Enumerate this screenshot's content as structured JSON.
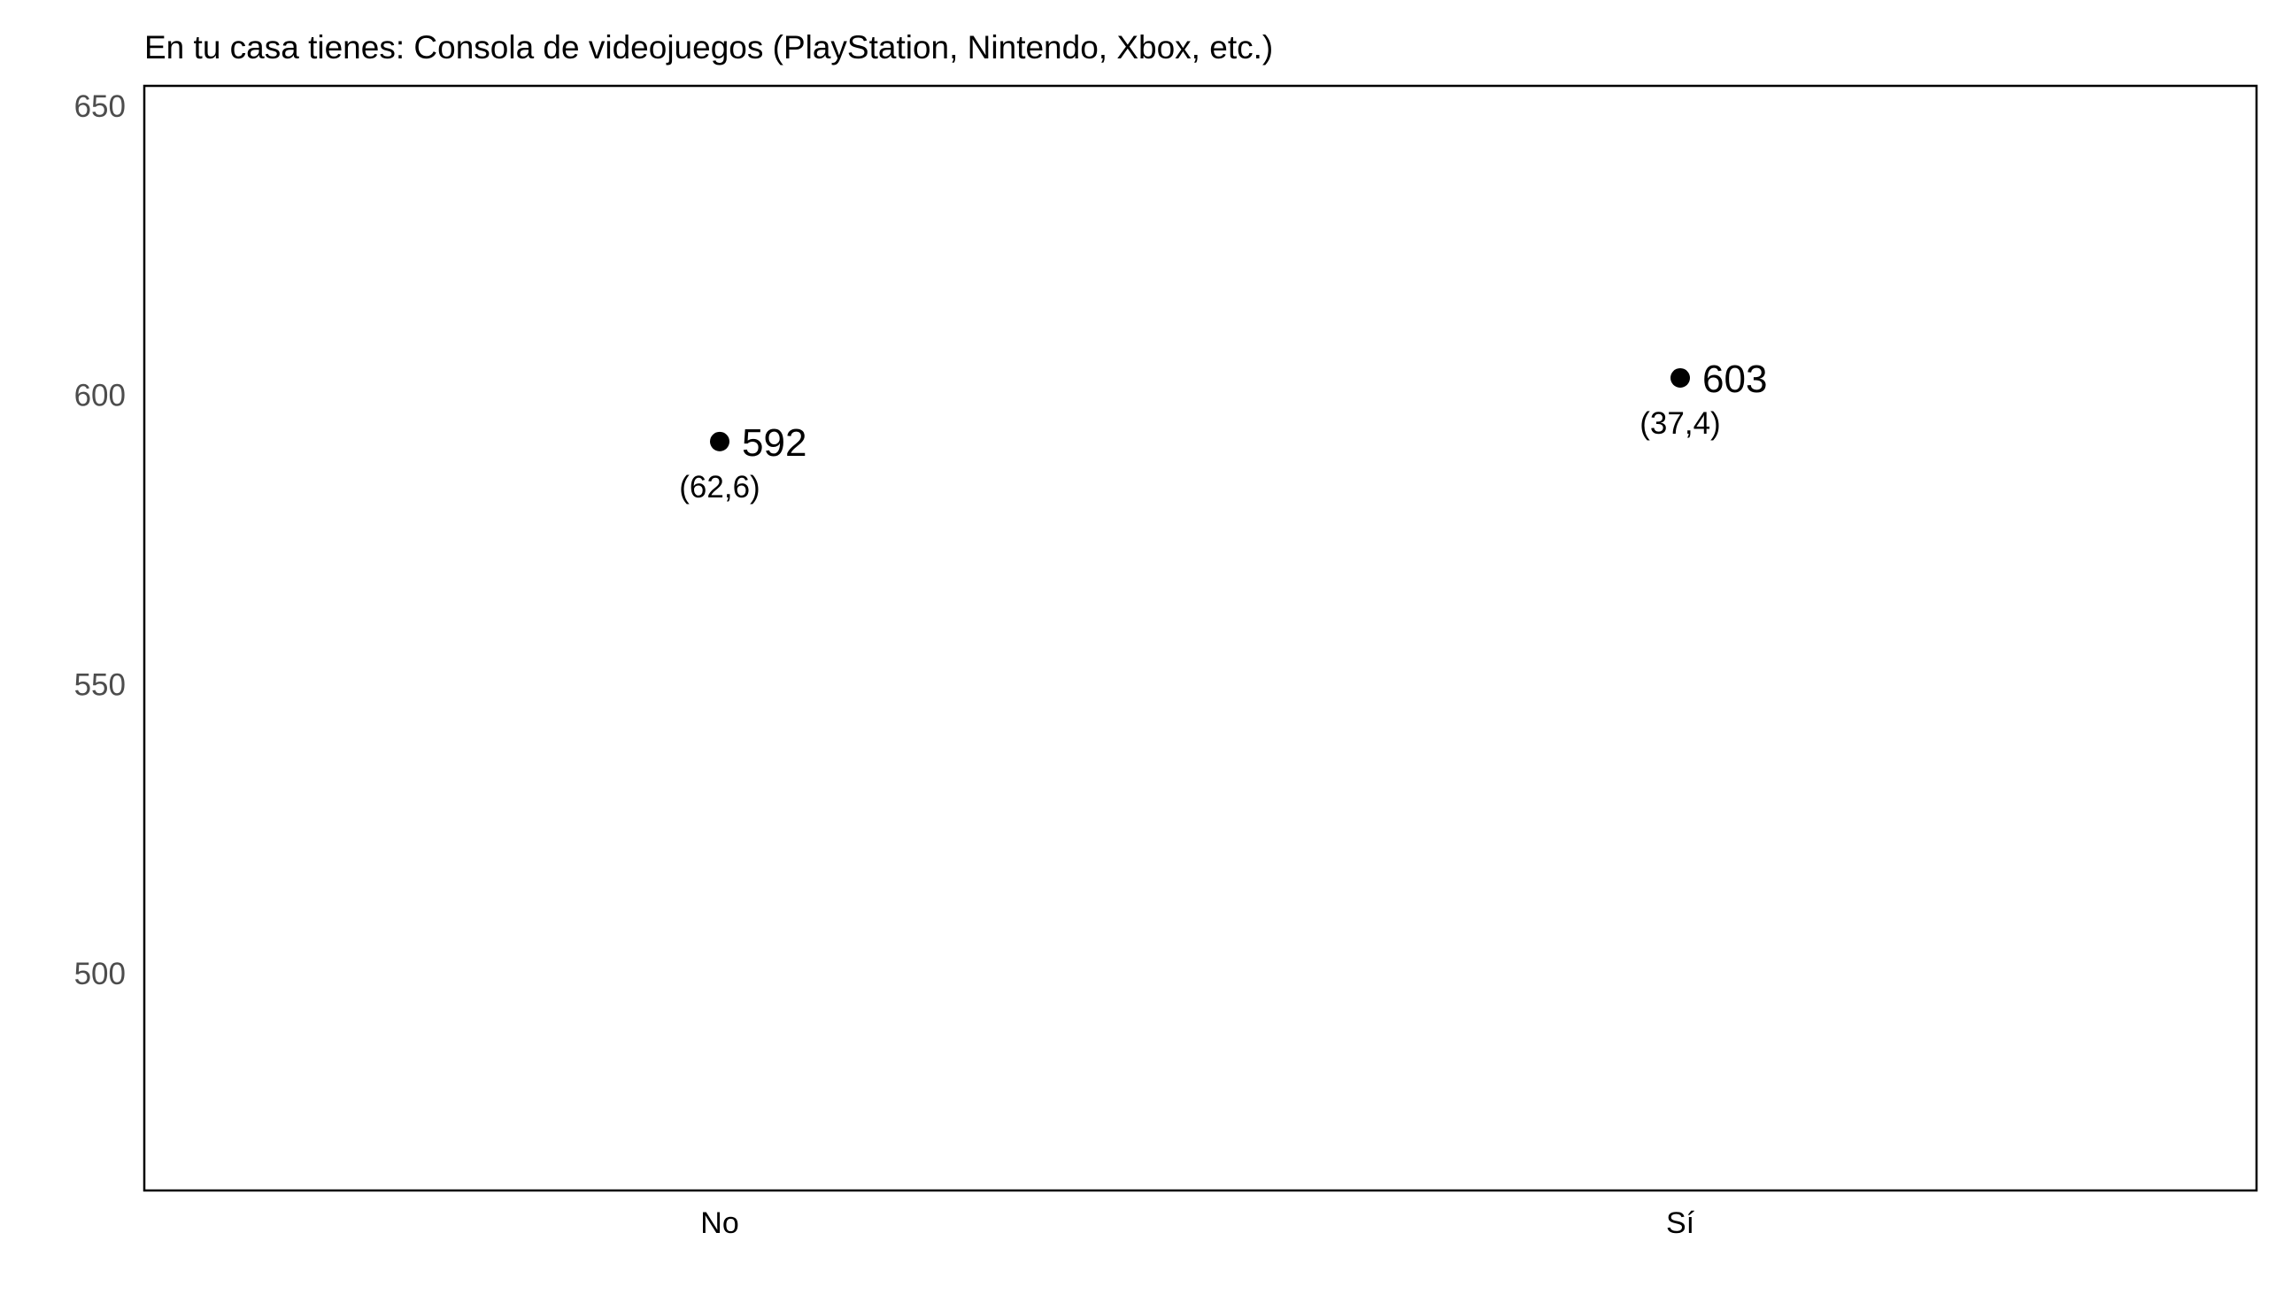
{
  "chart_data": {
    "type": "scatter",
    "title": "En tu casa tienes: Consola de videojuegos (PlayStation, Nintendo, Xbox, etc.)",
    "xlabel": "",
    "ylabel": "",
    "categories": [
      "No",
      "Sí"
    ],
    "values": [
      592,
      603
    ],
    "value_labels": [
      "592",
      "603"
    ],
    "percent_labels": [
      "(62,6)",
      "(37,4)"
    ],
    "ylim": [
      462.5,
      653.5
    ],
    "yticks": [
      500,
      550,
      600,
      650
    ],
    "ytick_labels": [
      "500",
      "550",
      "600",
      "650"
    ],
    "grid": false,
    "legend": "none",
    "colors": {
      "point": "#000000",
      "frame": "#000000",
      "y_tick_text": "#4d4d4d"
    }
  }
}
